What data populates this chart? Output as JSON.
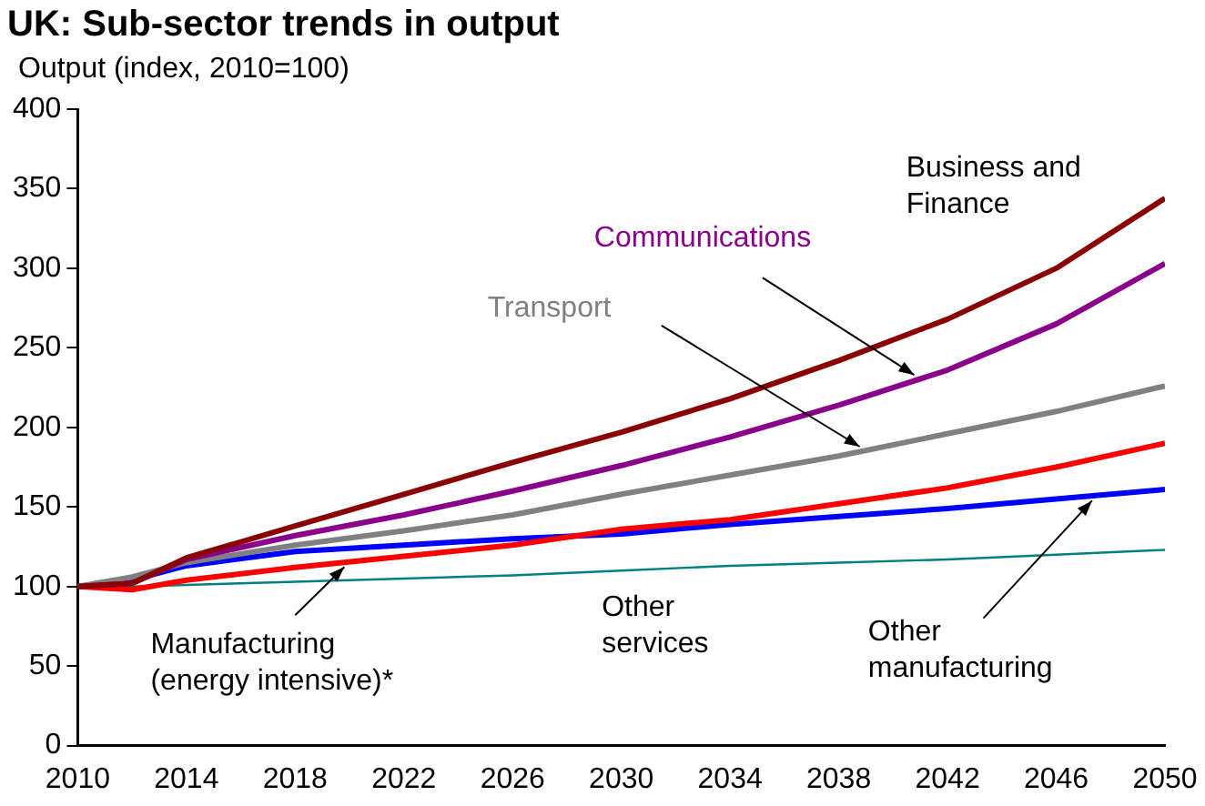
{
  "chart_data": {
    "type": "line",
    "title": "UK: Sub-sector trends in output",
    "ylabel": "Output (index, 2010=100)",
    "x": [
      2010,
      2012,
      2014,
      2018,
      2022,
      2026,
      2030,
      2034,
      2038,
      2042,
      2046,
      2050
    ],
    "xlim": [
      2010,
      2050
    ],
    "xticks": [
      2010,
      2014,
      2018,
      2022,
      2026,
      2030,
      2034,
      2038,
      2042,
      2046,
      2050
    ],
    "ylim": [
      0,
      400
    ],
    "yticks": [
      0,
      50,
      100,
      150,
      200,
      250,
      300,
      350,
      400
    ],
    "grid": false,
    "legend": false,
    "marker": "none",
    "line_style": "solid",
    "series": [
      {
        "name": "Business and Finance",
        "color": "#8b0000",
        "values": [
          100,
          102,
          118,
          138,
          158,
          178,
          197,
          218,
          242,
          268,
          300,
          344
        ]
      },
      {
        "name": "Communications",
        "color": "#8b008b",
        "values": [
          100,
          102,
          117,
          132,
          145,
          160,
          176,
          194,
          214,
          236,
          265,
          303
        ]
      },
      {
        "name": "Transport",
        "color": "#808080",
        "values": [
          100,
          106,
          115,
          126,
          135,
          145,
          158,
          170,
          182,
          196,
          210,
          226
        ]
      },
      {
        "name": "Manufacturing (energy intensive)*",
        "color": "#ff0000",
        "values": [
          100,
          98,
          104,
          112,
          119,
          126,
          136,
          142,
          152,
          162,
          175,
          190
        ]
      },
      {
        "name": "Other services",
        "color": "#008080",
        "values": [
          100,
          100,
          101,
          103,
          105,
          107,
          110,
          113,
          115,
          117,
          120,
          123
        ]
      },
      {
        "name": "Other manufacturing",
        "color": "#0000ff",
        "values": [
          100,
          104,
          113,
          122,
          126,
          130,
          133,
          139,
          144,
          149,
          155,
          161
        ]
      }
    ]
  }
}
